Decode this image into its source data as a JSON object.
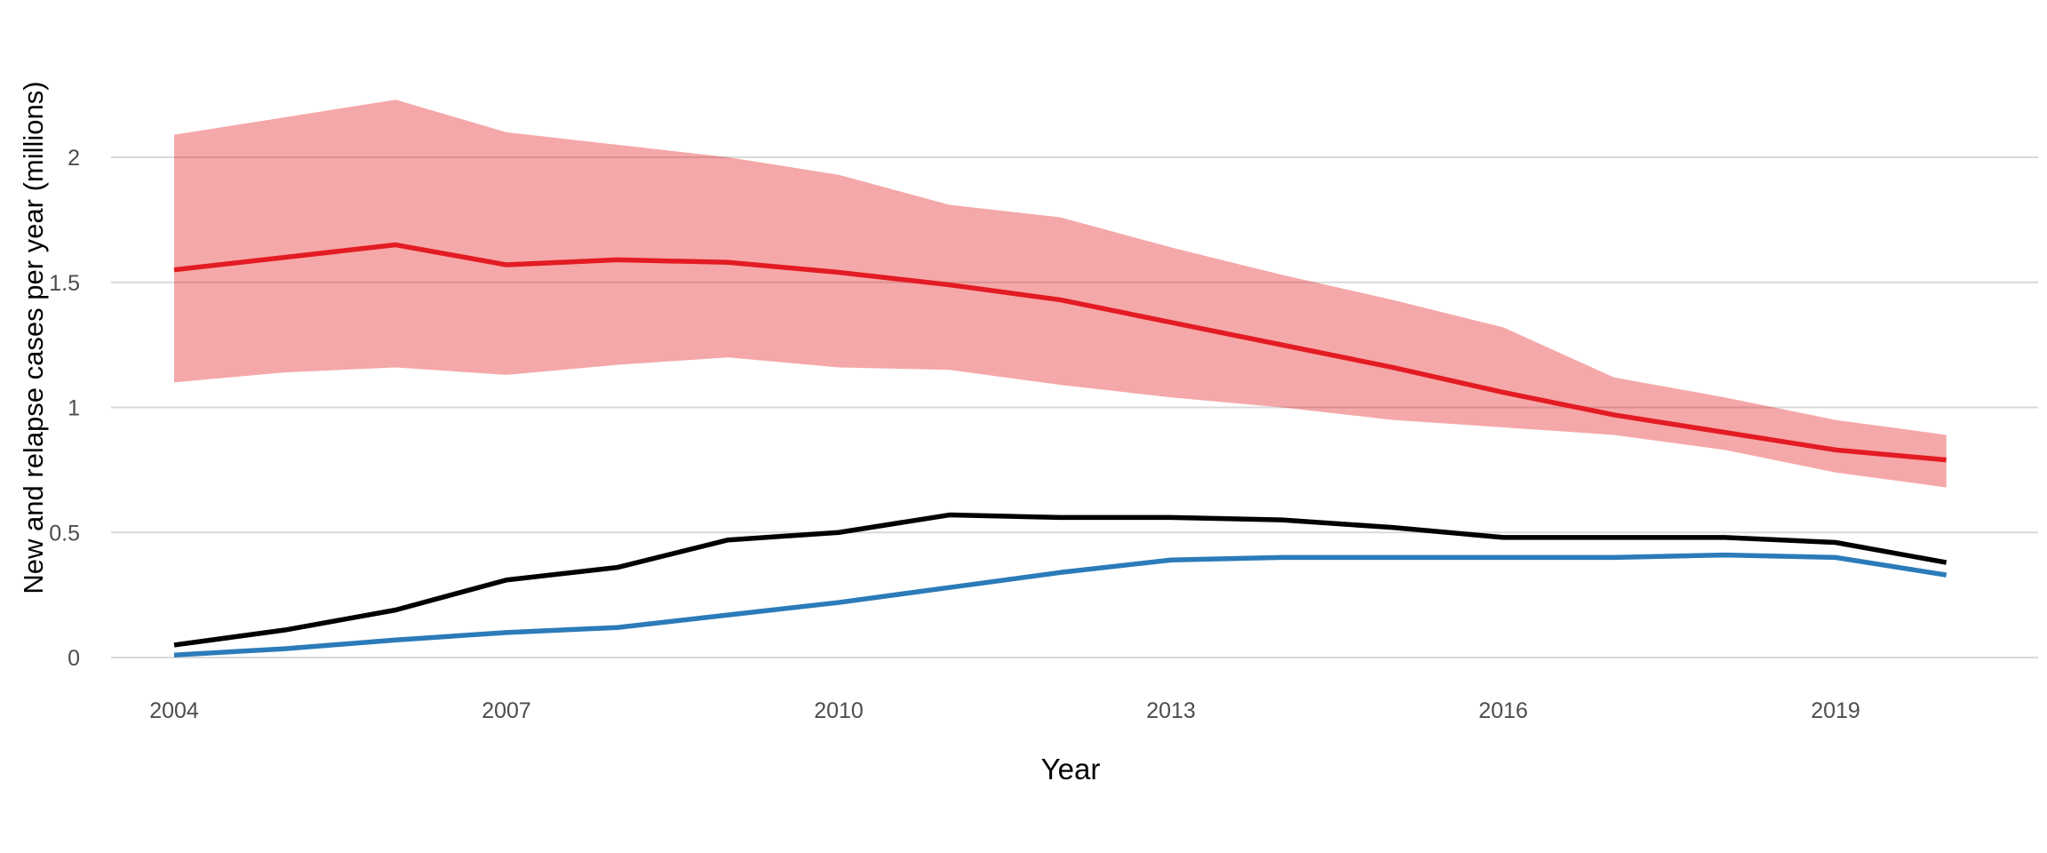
{
  "chart_data": {
    "type": "line",
    "title": "",
    "xlabel": "Year",
    "ylabel": "New and relapse cases per year (millions)",
    "x": [
      2004,
      2005,
      2006,
      2007,
      2008,
      2009,
      2010,
      2011,
      2012,
      2013,
      2014,
      2015,
      2016,
      2017,
      2018,
      2019,
      2020
    ],
    "series": [
      {
        "name": "red-estimate-line",
        "color": "#e31b23",
        "width": 5.5,
        "values": [
          1.55,
          1.6,
          1.65,
          1.57,
          1.59,
          1.58,
          1.54,
          1.49,
          1.43,
          1.34,
          1.25,
          1.16,
          1.06,
          0.97,
          0.9,
          0.83,
          0.79
        ]
      },
      {
        "name": "black-line",
        "color": "#000000",
        "width": 5.5,
        "values": [
          0.05,
          0.11,
          0.19,
          0.31,
          0.36,
          0.47,
          0.5,
          0.57,
          0.56,
          0.56,
          0.55,
          0.52,
          0.48,
          0.48,
          0.48,
          0.46,
          0.38
        ]
      },
      {
        "name": "blue-line",
        "color": "#2b7bb9",
        "width": 5.5,
        "values": [
          0.01,
          0.035,
          0.07,
          0.1,
          0.12,
          0.17,
          0.22,
          0.28,
          0.34,
          0.39,
          0.4,
          0.4,
          0.4,
          0.4,
          0.41,
          0.4,
          0.33
        ]
      }
    ],
    "band": {
      "name": "red-uncertainty-band",
      "fill": "rgba(228,26,28,0.38)",
      "upper": [
        2.09,
        2.16,
        2.23,
        2.1,
        2.05,
        2.0,
        1.93,
        1.81,
        1.76,
        1.64,
        1.53,
        1.43,
        1.32,
        1.12,
        1.04,
        0.95,
        0.89
      ],
      "lower": [
        1.1,
        1.14,
        1.16,
        1.13,
        1.17,
        1.2,
        1.16,
        1.15,
        1.09,
        1.04,
        1.0,
        0.95,
        0.92,
        0.89,
        0.83,
        0.74,
        0.68
      ]
    },
    "x_ticks": [
      2004,
      2007,
      2010,
      2013,
      2016,
      2019
    ],
    "y_ticks": [
      0,
      0.5,
      1,
      1.5,
      2
    ],
    "y_tick_labels": [
      "0",
      "0.5",
      "1",
      "1.5",
      "2"
    ],
    "xlim": [
      2003.43,
      2020.83
    ],
    "ylim": [
      0,
      2.35
    ],
    "grid": "horizontal-only",
    "legend": "none",
    "colors": {
      "gridline": "#d9d9d9",
      "tick_label": "#4d4d4d",
      "axis_title": "#000000",
      "background": "#ffffff"
    }
  }
}
